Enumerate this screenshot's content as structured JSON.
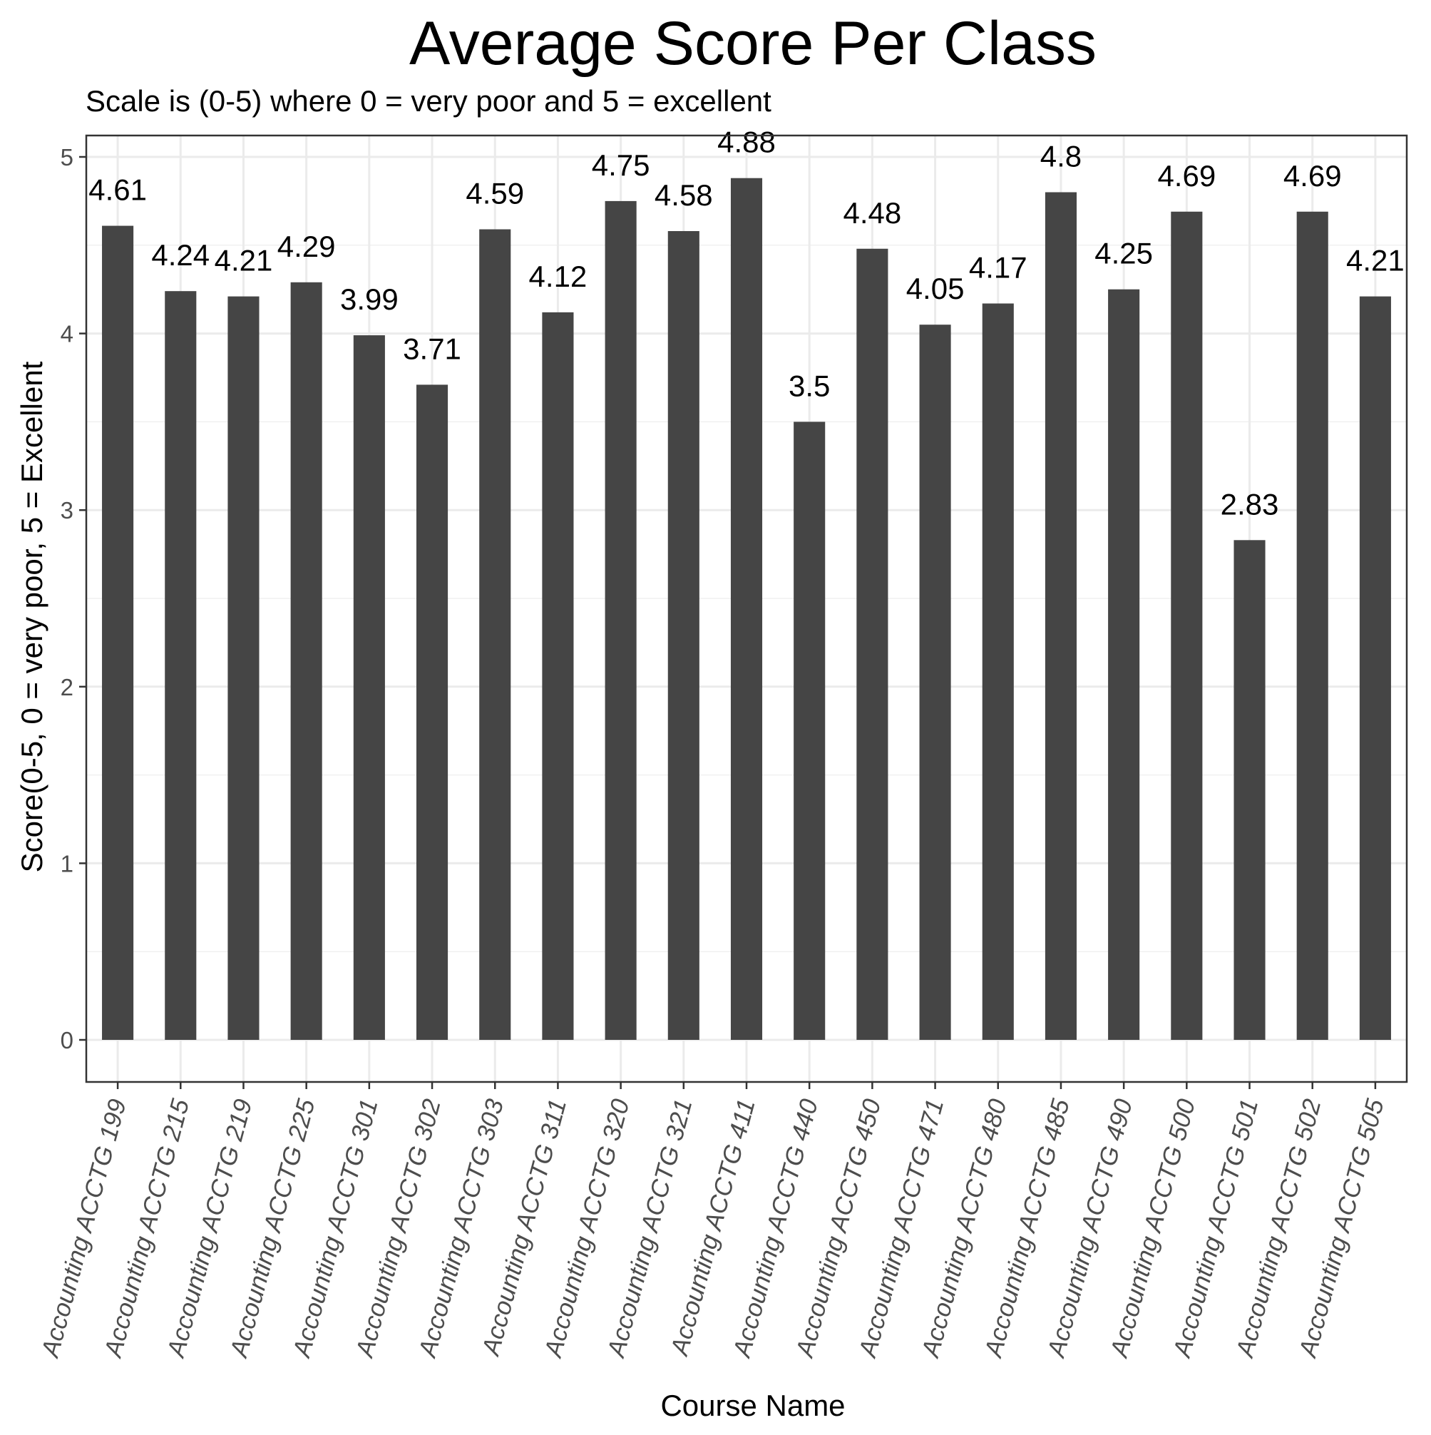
{
  "chart_data": {
    "type": "bar",
    "title": "Average Score Per Class",
    "subtitle": "Scale is (0-5) where 0 = very poor and 5 = excellent",
    "xlabel": "Course Name",
    "ylabel": "Score(0-5, 0 = very poor, 5 = Excellent",
    "ylim": [
      0,
      5
    ],
    "yticks": [
      0,
      1,
      2,
      3,
      4,
      5
    ],
    "categories": [
      "Accounting ACCTG 199",
      "Accounting ACCTG 215",
      "Accounting ACCTG 219",
      "Accounting ACCTG 225",
      "Accounting ACCTG 301",
      "Accounting ACCTG 302",
      "Accounting ACCTG 303",
      "Accounting ACCTG 311",
      "Accounting ACCTG 320",
      "Accounting ACCTG 321",
      "Accounting ACCTG 411",
      "Accounting ACCTG 440",
      "Accounting ACCTG 450",
      "Accounting ACCTG 471",
      "Accounting ACCTG 480",
      "Accounting ACCTG 485",
      "Accounting ACCTG 490",
      "Accounting ACCTG 500",
      "Accounting ACCTG 501",
      "Accounting ACCTG 502",
      "Accounting ACCTG 505"
    ],
    "values": [
      4.61,
      4.24,
      4.21,
      4.29,
      3.99,
      3.71,
      4.59,
      4.12,
      4.75,
      4.58,
      4.88,
      3.5,
      4.48,
      4.05,
      4.17,
      4.8,
      4.25,
      4.69,
      2.83,
      4.69,
      4.21
    ],
    "value_labels": [
      "4.61",
      "4.24",
      "4.21",
      "4.29",
      "3.99",
      "3.71",
      "4.59",
      "4.12",
      "4.75",
      "4.58",
      "4.88",
      "3.5",
      "4.48",
      "4.05",
      "4.17",
      "4.8",
      "4.25",
      "4.69",
      "2.83",
      "4.69",
      "4.21"
    ],
    "grid": true,
    "bar_color": "#454545"
  }
}
